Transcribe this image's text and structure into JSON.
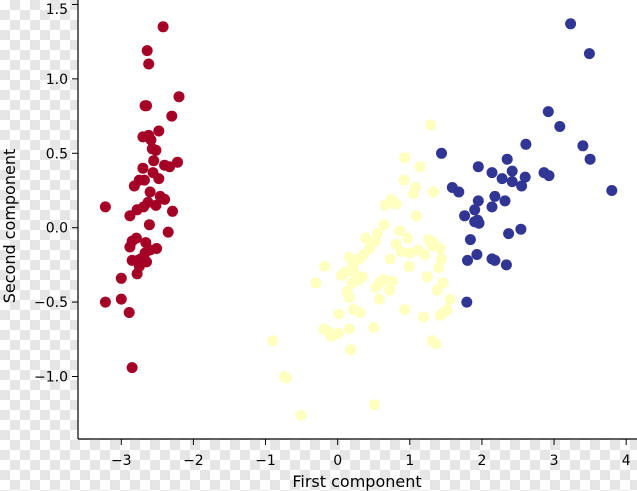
{
  "chart_data": {
    "type": "scatter",
    "title": "",
    "xlabel": "First component",
    "ylabel": "Second component",
    "xlim": [
      -3.6,
      4.15
    ],
    "ylim": [
      -1.42,
      1.53
    ],
    "xticks": [
      -3,
      -2,
      -1,
      0,
      1,
      2,
      3,
      4
    ],
    "xtick_labels": [
      "−3",
      "−2",
      "−1",
      "0",
      "1",
      "2",
      "3",
      "4"
    ],
    "yticks": [
      -1.0,
      -0.5,
      0.0,
      0.5,
      1.0,
      1.5
    ],
    "ytick_labels": [
      "−1.0",
      "−0.5",
      "0.0",
      "0.5",
      "1.0",
      "1.5"
    ],
    "grid": false,
    "series": [
      {
        "color": "#a50026",
        "points": [
          [
            -2.42,
            1.35
          ],
          [
            -2.64,
            1.19
          ],
          [
            -2.62,
            1.1
          ],
          [
            -2.2,
            0.88
          ],
          [
            -2.65,
            0.82
          ],
          [
            -2.67,
            0.82
          ],
          [
            -2.3,
            0.75
          ],
          [
            -2.48,
            0.65
          ],
          [
            -2.62,
            0.62
          ],
          [
            -2.7,
            0.61
          ],
          [
            -2.59,
            0.59
          ],
          [
            -2.57,
            0.53
          ],
          [
            -2.52,
            0.52
          ],
          [
            -2.55,
            0.45
          ],
          [
            -2.22,
            0.44
          ],
          [
            -2.4,
            0.42
          ],
          [
            -2.33,
            0.41
          ],
          [
            -2.7,
            0.4
          ],
          [
            -2.56,
            0.37
          ],
          [
            -2.48,
            0.33
          ],
          [
            -2.68,
            0.32
          ],
          [
            -2.75,
            0.32
          ],
          [
            -2.82,
            0.28
          ],
          [
            -2.6,
            0.24
          ],
          [
            -2.46,
            0.21
          ],
          [
            -2.63,
            0.17
          ],
          [
            -2.4,
            0.19
          ],
          [
            -2.69,
            0.14
          ],
          [
            -2.52,
            0.15
          ],
          [
            -3.22,
            0.14
          ],
          [
            -2.78,
            0.12
          ],
          [
            -2.29,
            0.11
          ],
          [
            -2.88,
            0.08
          ],
          [
            -2.61,
            0.02
          ],
          [
            -2.35,
            -0.03
          ],
          [
            -2.79,
            -0.07
          ],
          [
            -2.85,
            -0.09
          ],
          [
            -2.66,
            -0.1
          ],
          [
            -2.88,
            -0.13
          ],
          [
            -2.51,
            -0.14
          ],
          [
            -2.6,
            -0.15
          ],
          [
            -2.67,
            -0.17
          ],
          [
            -2.73,
            -0.21
          ],
          [
            -2.85,
            -0.22
          ],
          [
            -2.77,
            -0.22
          ],
          [
            -2.65,
            -0.23
          ],
          [
            -2.75,
            -0.26
          ],
          [
            -2.78,
            -0.31
          ],
          [
            -3.0,
            -0.34
          ],
          [
            -3.22,
            -0.5
          ],
          [
            -3.0,
            -0.48
          ],
          [
            -2.89,
            -0.57
          ],
          [
            -2.85,
            -0.94
          ]
        ]
      },
      {
        "color": "#ffffbf",
        "points": [
          [
            1.29,
            0.69
          ],
          [
            1.14,
            0.41
          ],
          [
            0.93,
            0.47
          ],
          [
            0.92,
            0.32
          ],
          [
            1.08,
            0.27
          ],
          [
            1.33,
            0.24
          ],
          [
            1.05,
            0.23
          ],
          [
            0.74,
            0.19
          ],
          [
            0.66,
            0.15
          ],
          [
            0.81,
            0.16
          ],
          [
            1.09,
            0.08
          ],
          [
            0.64,
            0.02
          ],
          [
            0.86,
            -0.02
          ],
          [
            0.55,
            -0.04
          ],
          [
            0.39,
            -0.07
          ],
          [
            0.97,
            -0.07
          ],
          [
            1.26,
            -0.08
          ],
          [
            1.33,
            -0.1
          ],
          [
            0.52,
            -0.09
          ],
          [
            0.81,
            -0.11
          ],
          [
            1.31,
            -0.12
          ],
          [
            0.44,
            -0.14
          ],
          [
            1.42,
            -0.14
          ],
          [
            1.12,
            -0.15
          ],
          [
            0.88,
            -0.16
          ],
          [
            1.0,
            -0.17
          ],
          [
            1.21,
            -0.18
          ],
          [
            0.36,
            -0.18
          ],
          [
            0.16,
            -0.2
          ],
          [
            0.3,
            -0.21
          ],
          [
            1.44,
            -0.21
          ],
          [
            0.73,
            -0.21
          ],
          [
            0.21,
            -0.25
          ],
          [
            0.99,
            -0.26
          ],
          [
            -0.18,
            -0.26
          ],
          [
            1.4,
            -0.27
          ],
          [
            0.22,
            -0.29
          ],
          [
            0.11,
            -0.3
          ],
          [
            0.05,
            -0.32
          ],
          [
            0.34,
            -0.33
          ],
          [
            0.64,
            -0.35
          ],
          [
            1.24,
            -0.33
          ],
          [
            0.28,
            -0.35
          ],
          [
            0.76,
            -0.36
          ],
          [
            0.2,
            -0.37
          ],
          [
            -0.3,
            -0.37
          ],
          [
            0.58,
            -0.37
          ],
          [
            1.46,
            -0.37
          ],
          [
            0.53,
            -0.4
          ],
          [
            0.13,
            -0.43
          ],
          [
            1.38,
            -0.42
          ],
          [
            0.72,
            -0.42
          ],
          [
            0.16,
            -0.47
          ],
          [
            1.56,
            -0.48
          ],
          [
            0.58,
            -0.48
          ],
          [
            0.93,
            -0.55
          ],
          [
            0.22,
            -0.55
          ],
          [
            1.52,
            -0.55
          ],
          [
            1.47,
            -0.57
          ],
          [
            0.31,
            -0.57
          ],
          [
            0.02,
            -0.58
          ],
          [
            1.42,
            -0.59
          ],
          [
            1.19,
            -0.6
          ],
          [
            0.5,
            -0.67
          ],
          [
            0.16,
            -0.68
          ],
          [
            -0.19,
            -0.68
          ],
          [
            -0.13,
            -0.7
          ],
          [
            0.01,
            -0.71
          ],
          [
            -0.09,
            -0.73
          ],
          [
            -0.9,
            -0.76
          ],
          [
            1.31,
            -0.76
          ],
          [
            1.36,
            -0.78
          ],
          [
            0.18,
            -0.82
          ],
          [
            -0.74,
            -1.0
          ],
          [
            -0.71,
            -1.01
          ],
          [
            0.51,
            -1.19
          ],
          [
            -0.51,
            -1.26
          ]
        ]
      },
      {
        "color": "#313695",
        "points": [
          [
            3.23,
            1.37
          ],
          [
            3.49,
            1.17
          ],
          [
            2.92,
            0.78
          ],
          [
            3.08,
            0.68
          ],
          [
            2.61,
            0.56
          ],
          [
            1.44,
            0.5
          ],
          [
            3.4,
            0.55
          ],
          [
            3.5,
            0.46
          ],
          [
            2.35,
            0.46
          ],
          [
            1.95,
            0.41
          ],
          [
            2.14,
            0.37
          ],
          [
            2.42,
            0.38
          ],
          [
            2.86,
            0.37
          ],
          [
            2.93,
            0.35
          ],
          [
            2.28,
            0.33
          ],
          [
            2.6,
            0.34
          ],
          [
            2.42,
            0.31
          ],
          [
            1.59,
            0.27
          ],
          [
            2.55,
            0.28
          ],
          [
            1.68,
            0.24
          ],
          [
            3.8,
            0.25
          ],
          [
            2.18,
            0.21
          ],
          [
            2.32,
            0.18
          ],
          [
            1.95,
            0.18
          ],
          [
            2.14,
            0.14
          ],
          [
            1.9,
            0.12
          ],
          [
            1.76,
            0.08
          ],
          [
            1.94,
            0.05
          ],
          [
            1.9,
            0.04
          ],
          [
            1.96,
            0.03
          ],
          [
            2.54,
            -0.01
          ],
          [
            2.37,
            -0.04
          ],
          [
            1.84,
            -0.08
          ],
          [
            1.93,
            -0.18
          ],
          [
            2.14,
            -0.21
          ],
          [
            2.18,
            -0.22
          ],
          [
            1.8,
            -0.22
          ],
          [
            2.34,
            -0.25
          ],
          [
            1.79,
            -0.5
          ]
        ]
      }
    ]
  }
}
